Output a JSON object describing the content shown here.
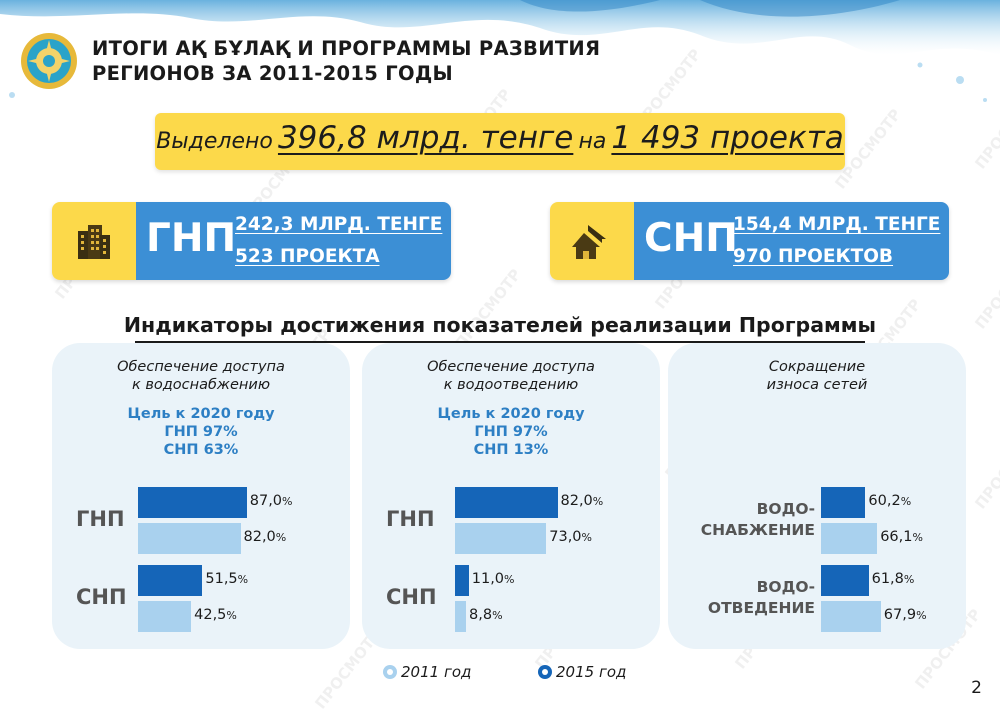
{
  "header": {
    "title_line1": "ИТОГИ АҚ БҰЛАҚ И ПРОГРАММЫ РАЗВИТИЯ",
    "title_line2": "РЕГИОНОВ ЗА 2011-2015 ГОДЫ"
  },
  "banner": {
    "prefix": "Выделено",
    "amount": "396,8 млрд. тенге",
    "middle": "на",
    "projects": "1 493 проекта"
  },
  "programs": [
    {
      "code": "ГНП",
      "line1": "242,3 МЛРД. ТЕНГЕ",
      "line2": "523 ПРОЕКТА",
      "icon": "building-icon"
    },
    {
      "code": "СНП",
      "line1": "154,4 МЛРД. ТЕНГЕ",
      "line2": "970 ПРОЕКТОВ",
      "icon": "houses-icon"
    }
  ],
  "indicators_title": "Индикаторы достижения показателей реализации Программы",
  "colors": {
    "dark": "#1565b8",
    "light": "#a9d1ee",
    "accent": "#fcd94a",
    "blue": "#3c8fd5"
  },
  "chart_data": [
    {
      "type": "bar",
      "orientation": "horizontal",
      "title": "Обеспечение доступа\nк водоснабжению",
      "goal": [
        "Цель к 2020 году",
        "ГНП 97%",
        "СНП 63%"
      ],
      "categories": [
        "ГНП",
        "СНП"
      ],
      "series": [
        {
          "name": "2015 год",
          "values": [
            87.0,
            51.5
          ],
          "labels": [
            "87,0",
            "51,5"
          ]
        },
        {
          "name": "2011 год",
          "values": [
            82.0,
            42.5
          ],
          "labels": [
            "82,0",
            "42,5"
          ]
        }
      ],
      "unit": "%",
      "xlim": [
        0,
        100
      ]
    },
    {
      "type": "bar",
      "orientation": "horizontal",
      "title": "Обеспечение доступа\nк водоотведению",
      "goal": [
        "Цель к 2020 году",
        "ГНП 97%",
        "СНП 13%"
      ],
      "categories": [
        "ГНП",
        "СНП"
      ],
      "series": [
        {
          "name": "2015 год",
          "values": [
            82.0,
            11.0
          ],
          "labels": [
            "82,0",
            "11,0"
          ]
        },
        {
          "name": "2011 год",
          "values": [
            73.0,
            8.8
          ],
          "labels": [
            "73,0",
            "8,8"
          ]
        }
      ],
      "unit": "%",
      "xlim": [
        0,
        100
      ]
    },
    {
      "type": "bar",
      "orientation": "horizontal",
      "title": "Сокращение\nизноса сетей",
      "goal": [],
      "categories": [
        "ВОДО-\nСНАБЖЕНИЕ",
        "ВОДО-\nОТВЕДЕНИЕ"
      ],
      "series": [
        {
          "name": "2015 год",
          "values": [
            60.2,
            61.8
          ],
          "labels": [
            "60,2",
            "61,8"
          ]
        },
        {
          "name": "2011 год",
          "values": [
            66.1,
            67.9
          ],
          "labels": [
            "66,1",
            "67,9"
          ]
        }
      ],
      "unit": "%",
      "xlim": [
        40,
        100
      ]
    }
  ],
  "legend": {
    "y2011": "2011 год",
    "y2015": "2015 год"
  },
  "watermark": "ПРОСМОТР",
  "page_number": "2"
}
